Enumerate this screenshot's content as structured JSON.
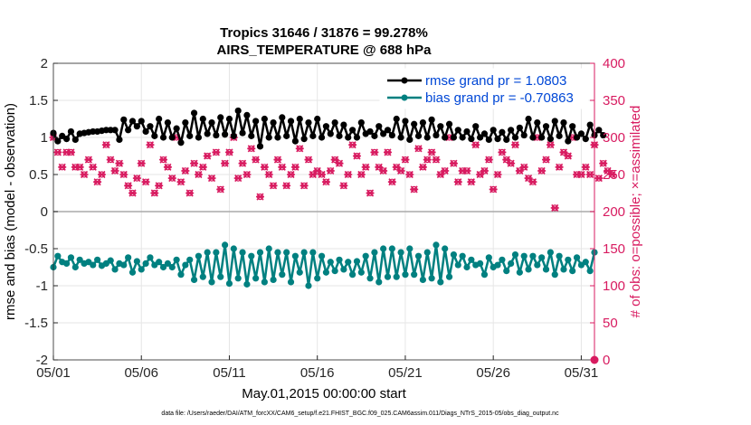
{
  "chart_data": {
    "type": "line",
    "title": "Tropics 31646 / 31876 = 99.278%",
    "subtitle": "AIRS_TEMPERATURE @ 688 hPa",
    "xlabel": "May.01,2015 00:00:00 start",
    "ylabel_left": "rmse and bias (model - observation)",
    "ylabel_right": "# of obs: o=possible; ×=assimilated",
    "footnote": "data file: /Users/raeder/DAI/ATM_forcXX/CAM6_setup/f.e21.FHIST_BGC.f09_025.CAM6assim.011/Diags_NTrS_2015-05/obs_diag_output.nc",
    "x_ticks": [
      "05/01",
      "05/06",
      "05/11",
      "05/16",
      "05/21",
      "05/26",
      "05/31"
    ],
    "x_tick_days": [
      0,
      5,
      10,
      15,
      20,
      25,
      30
    ],
    "xlim_days": [
      0,
      30.75
    ],
    "ylim_left": [
      -2,
      2
    ],
    "yticks_left": [
      "2",
      "1.5",
      "1",
      "0.5",
      "0",
      "-0.5",
      "-1",
      "-1.5",
      "-2"
    ],
    "ylim_right": [
      0,
      400
    ],
    "yticks_right": [
      "400",
      "350",
      "300",
      "250",
      "200",
      "150",
      "100",
      "50",
      "0"
    ],
    "grid": true,
    "legend_position": "top-right",
    "colors": {
      "rmse": "#000000",
      "bias": "#008080",
      "obs": "#d81b60",
      "right_axis": "#d81b60",
      "legend_text": "#0047d6",
      "zero_line": "#aaaaaa"
    },
    "series": [
      {
        "name": "rmse grand pr = 1.0803",
        "axis": "left",
        "x_start_day": 0,
        "x_step_day": 0.25,
        "values": [
          1.06,
          0.95,
          1.02,
          0.98,
          1.08,
          0.97,
          1.05,
          1.06,
          1.07,
          1.08,
          1.08,
          1.09,
          1.1,
          1.1,
          1.1,
          0.97,
          1.24,
          1.1,
          1.22,
          1.15,
          1.22,
          1.08,
          1.15,
          1.02,
          1.25,
          1.0,
          1.2,
          1.0,
          1.12,
          0.93,
          1.2,
          1.02,
          1.33,
          1.0,
          1.25,
          1.05,
          1.2,
          1.03,
          1.27,
          1.04,
          1.25,
          1.02,
          1.36,
          1.06,
          1.3,
          1.02,
          1.22,
          0.88,
          1.25,
          1.0,
          1.2,
          1.0,
          1.27,
          1.02,
          1.22,
          0.95,
          1.25,
          0.98,
          1.2,
          1.02,
          1.25,
          1.0,
          1.15,
          1.05,
          1.2,
          1.02,
          1.17,
          1.0,
          1.1,
          1.0,
          1.2,
          1.05,
          1.08,
          1.02,
          1.15,
          1.05,
          1.1,
          1.03,
          1.25,
          1.0,
          1.22,
          0.97,
          1.18,
          1.02,
          1.2,
          1.0,
          1.24,
          1.03,
          1.15,
          1.0,
          1.18,
          1.0,
          1.1,
          1.0,
          1.08,
          0.98,
          1.15,
          1.0,
          1.05,
          0.97,
          1.1,
          0.98,
          1.07,
          0.97,
          1.1,
          1.0,
          1.13,
          1.03,
          1.25,
          1.0,
          1.2,
          1.0,
          1.15,
          0.98,
          1.22,
          1.02,
          1.2,
          0.95,
          1.15,
          1.0,
          1.05,
          0.98,
          1.17,
          1.03,
          1.1,
          1.03
        ]
      },
      {
        "name": "bias grand pr = -0.70863",
        "axis": "left",
        "x_start_day": 0,
        "x_step_day": 0.25,
        "values": [
          -0.75,
          -0.6,
          -0.68,
          -0.7,
          -0.62,
          -0.75,
          -0.65,
          -0.7,
          -0.68,
          -0.72,
          -0.65,
          -0.73,
          -0.7,
          -0.66,
          -0.78,
          -0.7,
          -0.72,
          -0.62,
          -0.82,
          -0.67,
          -0.78,
          -0.7,
          -0.62,
          -0.72,
          -0.68,
          -0.75,
          -0.7,
          -0.75,
          -0.65,
          -0.85,
          -0.72,
          -0.65,
          -0.92,
          -0.6,
          -0.88,
          -0.55,
          -0.95,
          -0.55,
          -0.88,
          -0.45,
          -0.97,
          -0.5,
          -0.9,
          -0.55,
          -0.98,
          -0.6,
          -0.9,
          -0.55,
          -0.95,
          -0.5,
          -0.92,
          -0.55,
          -0.85,
          -0.55,
          -0.95,
          -0.6,
          -0.82,
          -0.55,
          -1.0,
          -0.55,
          -0.9,
          -0.6,
          -0.82,
          -0.68,
          -0.8,
          -0.65,
          -0.78,
          -0.68,
          -0.85,
          -0.67,
          -0.82,
          -0.6,
          -0.9,
          -0.55,
          -0.95,
          -0.5,
          -0.88,
          -0.5,
          -0.88,
          -0.55,
          -0.85,
          -0.5,
          -0.85,
          -0.6,
          -0.92,
          -0.55,
          -0.9,
          -0.45,
          -0.95,
          -0.5,
          -0.88,
          -0.58,
          -0.72,
          -0.6,
          -0.75,
          -0.65,
          -0.72,
          -0.7,
          -0.85,
          -0.62,
          -0.75,
          -0.72,
          -0.65,
          -0.8,
          -0.7,
          -0.58,
          -0.82,
          -0.6,
          -0.78,
          -0.6,
          -0.72,
          -0.62,
          -0.78,
          -0.55,
          -0.85,
          -0.6,
          -0.78,
          -0.65,
          -0.8,
          -0.62,
          -0.72,
          -0.68,
          -0.8,
          -0.55
        ]
      }
    ],
    "observation_counts": {
      "name": "# of obs",
      "axis": "right",
      "x_start_day": 0,
      "x_step_day": 0.25,
      "values": [
        300,
        280,
        260,
        280,
        280,
        260,
        260,
        250,
        270,
        260,
        240,
        250,
        290,
        270,
        255,
        265,
        250,
        235,
        225,
        245,
        265,
        240,
        290,
        225,
        235,
        270,
        260,
        245,
        300,
        240,
        255,
        225,
        265,
        250,
        260,
        275,
        245,
        280,
        230,
        265,
        280,
        300,
        245,
        265,
        250,
        285,
        270,
        220,
        260,
        250,
        235,
        270,
        260,
        235,
        250,
        260,
        285,
        235,
        270,
        250,
        255,
        250,
        240,
        255,
        270,
        265,
        235,
        250,
        290,
        275,
        250,
        260,
        225,
        280,
        260,
        255,
        280,
        240,
        260,
        255,
        270,
        250,
        230,
        285,
        260,
        270,
        280,
        270,
        250,
        255,
        300,
        265,
        240,
        255,
        255,
        240,
        290,
        250,
        255,
        270,
        230,
        250,
        280,
        270,
        265,
        290,
        255,
        260,
        245,
        240,
        300,
        255,
        270,
        290,
        205,
        260,
        280,
        275,
        300,
        250,
        250,
        260,
        250,
        290,
        245,
        265,
        255,
        250
      ]
    }
  }
}
